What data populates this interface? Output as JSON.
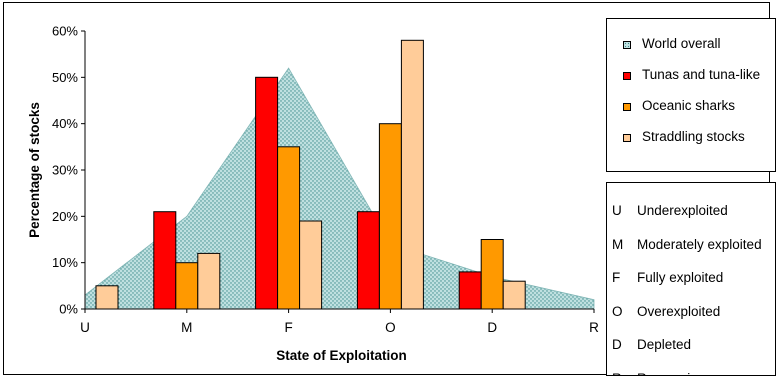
{
  "chart_data": {
    "type": "bar",
    "title": "",
    "xlabel": "State of Exploitation",
    "ylabel": "Percentage of stocks",
    "ylim": [
      0,
      60
    ],
    "y_ticks": [
      "0%",
      "10%",
      "20%",
      "30%",
      "40%",
      "50%",
      "60%"
    ],
    "x_ticks": [
      "U",
      "M",
      "F",
      "O",
      "D",
      "R"
    ],
    "categories": [
      "U",
      "M",
      "F",
      "O",
      "D"
    ],
    "area_series": {
      "name": "World overall",
      "x": [
        "U",
        "M",
        "F",
        "O",
        "D",
        "R"
      ],
      "values": [
        3,
        20,
        52,
        14,
        7,
        2
      ],
      "color": "#bfe0e0"
    },
    "series": [
      {
        "name": "Tunas and tuna-like",
        "values": [
          0,
          21,
          50,
          21,
          8
        ],
        "color": "#ff0000"
      },
      {
        "name": "Oceanic sharks",
        "values": [
          0,
          10,
          35,
          40,
          15
        ],
        "color": "#ff9900"
      },
      {
        "name": "Straddling stocks",
        "values": [
          5,
          12,
          19,
          58,
          6
        ],
        "color": "#ffcc99"
      }
    ],
    "grid": false,
    "legend_position": "right"
  },
  "legend": {
    "series": [
      {
        "label": "World overall",
        "color": "#bfe0e0",
        "pattern": "dots"
      },
      {
        "label": "Tunas and tuna-like",
        "color": "#ff0000"
      },
      {
        "label": "Oceanic sharks",
        "color": "#ff9900"
      },
      {
        "label": "Straddling stocks",
        "color": "#ffcc99"
      }
    ],
    "codes": [
      {
        "code": "U",
        "description": "Underexploited"
      },
      {
        "code": "M",
        "description": "Moderately exploited"
      },
      {
        "code": "F",
        "description": "Fully exploited"
      },
      {
        "code": "O",
        "description": "Overexploited"
      },
      {
        "code": "D",
        "description": "Depleted"
      },
      {
        "code": "R",
        "description": "Recovering"
      }
    ]
  }
}
